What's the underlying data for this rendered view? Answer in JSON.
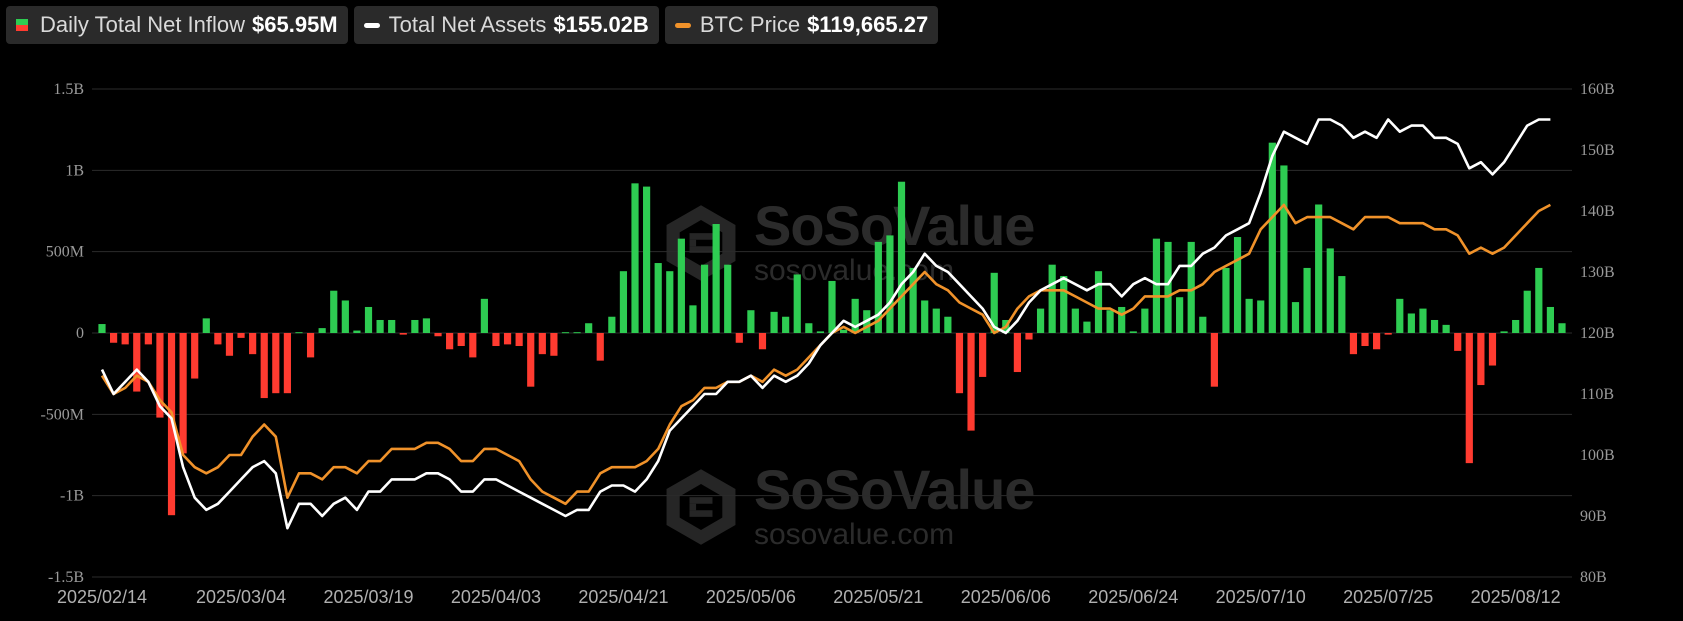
{
  "legend": {
    "inflow_label": "Daily Total Net Inflow",
    "inflow_value": "$65.95M",
    "assets_label": "Total Net Assets",
    "assets_value": "$155.02B",
    "btc_label": "BTC Price",
    "btc_value": "$119,665.27"
  },
  "watermark": {
    "brand": "SoSoValue",
    "site": "sosovalue.com"
  },
  "colors": {
    "inflow_positive": "#2ecc52",
    "inflow_negative": "#ff3b30",
    "net_assets": "#ffffff",
    "btc_price": "#f0922a",
    "grid": "#2b2b2b",
    "background": "#000000"
  },
  "chart_data": {
    "type": "bar+line",
    "left_axis": {
      "ticks": [
        "1.5B",
        "1B",
        "500M",
        "0",
        "-500M",
        "-1B",
        "-1.5B"
      ],
      "ylim": [
        -1500,
        1500
      ],
      "unit": "M"
    },
    "right_axis": {
      "ticks": [
        "160B",
        "150B",
        "140B",
        "130B",
        "120B",
        "110B",
        "100B",
        "90B",
        "80B"
      ],
      "ylim": [
        80,
        160
      ],
      "unit": "B"
    },
    "x_ticks": [
      "2025/02/14",
      "2025/03/04",
      "2025/03/19",
      "2025/04/03",
      "2025/04/21",
      "2025/05/06",
      "2025/05/21",
      "2025/06/06",
      "2025/06/24",
      "2025/07/10",
      "2025/07/25",
      "2025/08/12"
    ],
    "x_tick_indices": [
      0,
      12,
      23,
      34,
      45,
      56,
      67,
      78,
      89,
      100,
      111,
      122
    ],
    "grid": true,
    "series": [
      {
        "name": "Daily Total Net Inflow",
        "type": "bar",
        "unit": "M",
        "values": [
          55,
          -60,
          -70,
          -360,
          -70,
          -520,
          -1120,
          -740,
          -280,
          90,
          -70,
          -140,
          -30,
          -130,
          -400,
          -370,
          -370,
          5,
          -150,
          30,
          260,
          200,
          15,
          160,
          80,
          80,
          -10,
          80,
          90,
          -20,
          -100,
          -80,
          -150,
          210,
          -80,
          -70,
          -80,
          -330,
          -130,
          -140,
          5,
          5,
          60,
          -170,
          100,
          380,
          920,
          900,
          430,
          380,
          580,
          170,
          420,
          670,
          420,
          -60,
          140,
          -100,
          130,
          100,
          360,
          60,
          10,
          320,
          20,
          210,
          140,
          560,
          600,
          930,
          400,
          200,
          150,
          100,
          -370,
          -600,
          -270,
          370,
          80,
          -240,
          -40,
          150,
          420,
          350,
          150,
          70,
          380,
          140,
          160,
          10,
          150,
          580,
          560,
          220,
          560,
          100,
          -330,
          400,
          590,
          210,
          200,
          1170,
          1030,
          190,
          400,
          790,
          520,
          350,
          -130,
          -80,
          -100,
          -10,
          210,
          120,
          150,
          80,
          50,
          -110,
          -800,
          -320,
          -200,
          10,
          80,
          260,
          400,
          160,
          60
        ]
      },
      {
        "name": "Total Net Assets",
        "type": "line",
        "unit": "B",
        "values": [
          114,
          110,
          112,
          114,
          112,
          108,
          106,
          98,
          93,
          91,
          92,
          94,
          96,
          98,
          99,
          97,
          88,
          92,
          92,
          90,
          92,
          93,
          91,
          94,
          94,
          96,
          96,
          96,
          97,
          97,
          96,
          94,
          94,
          96,
          96,
          95,
          94,
          93,
          92,
          91,
          90,
          91,
          91,
          94,
          95,
          95,
          94,
          96,
          99,
          104,
          106,
          108,
          110,
          110,
          112,
          112,
          113,
          111,
          113,
          112,
          113,
          115,
          118,
          120,
          122,
          121,
          122,
          123,
          125,
          128,
          130,
          133,
          131,
          130,
          128,
          126,
          124,
          121,
          120,
          122,
          125,
          127,
          128,
          129,
          128,
          127,
          128,
          128,
          126,
          128,
          129,
          128,
          128,
          131,
          131,
          133,
          134,
          136,
          137,
          138,
          143,
          149,
          153,
          152,
          151,
          155,
          155,
          154,
          152,
          153,
          152,
          155,
          153,
          154,
          154,
          152,
          152,
          151,
          147,
          148,
          146,
          148,
          151,
          154,
          155,
          155
        ]
      },
      {
        "name": "BTC Price",
        "type": "line",
        "unit": "B",
        "values": [
          113,
          110,
          111,
          113,
          112,
          109,
          107,
          100,
          98,
          97,
          98,
          100,
          100,
          103,
          105,
          103,
          93,
          97,
          97,
          96,
          98,
          98,
          97,
          99,
          99,
          101,
          101,
          101,
          102,
          102,
          101,
          99,
          99,
          101,
          101,
          100,
          99,
          96,
          94,
          93,
          92,
          94,
          94,
          97,
          98,
          98,
          98,
          99,
          101,
          105,
          108,
          109,
          111,
          111,
          112,
          112,
          113,
          112,
          114,
          113,
          114,
          116,
          118,
          120,
          121,
          120,
          121,
          122,
          124,
          126,
          128,
          130,
          128,
          127,
          125,
          124,
          123,
          120,
          121,
          124,
          126,
          127,
          127,
          127,
          126,
          125,
          124,
          124,
          123,
          124,
          126,
          126,
          126,
          127,
          127,
          128,
          130,
          131,
          132,
          133,
          137,
          139,
          141,
          138,
          139,
          139,
          139,
          138,
          137,
          139,
          139,
          139,
          138,
          138,
          138,
          137,
          137,
          136,
          133,
          134,
          133,
          134,
          136,
          138,
          140,
          141
        ]
      }
    ]
  }
}
